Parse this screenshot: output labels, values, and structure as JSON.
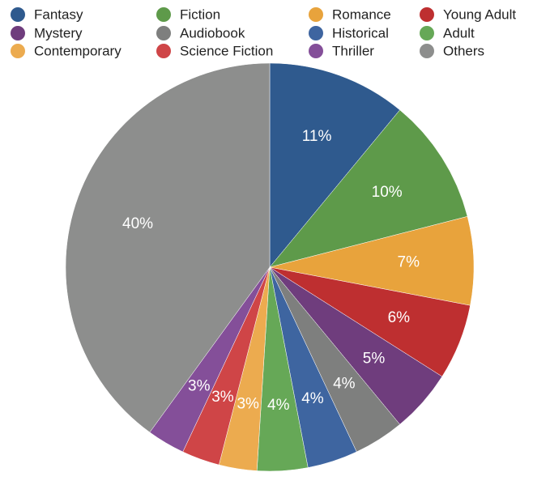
{
  "chart_data": {
    "type": "pie",
    "categories": [
      "Fantasy",
      "Fiction",
      "Romance",
      "Young Adult",
      "Mystery",
      "Audiobook",
      "Historical",
      "Adult",
      "Contemporary",
      "Science Fiction",
      "Thriller",
      "Others"
    ],
    "values": [
      11,
      10,
      7,
      6,
      5,
      4,
      4,
      4,
      3,
      3,
      3,
      40
    ],
    "value_labels": [
      "11%",
      "10%",
      "7%",
      "6%",
      "5%",
      "4%",
      "4%",
      "4%",
      "3%",
      "3%",
      "3%",
      "40%"
    ],
    "colors": [
      "#2f5a8e",
      "#5e9a4a",
      "#e8a33c",
      "#be2f30",
      "#6f3d7d",
      "#7e7f7e",
      "#3e65a0",
      "#66a857",
      "#ecab4f",
      "#cf4547",
      "#844f99",
      "#8d8e8d"
    ],
    "legend": "top"
  }
}
